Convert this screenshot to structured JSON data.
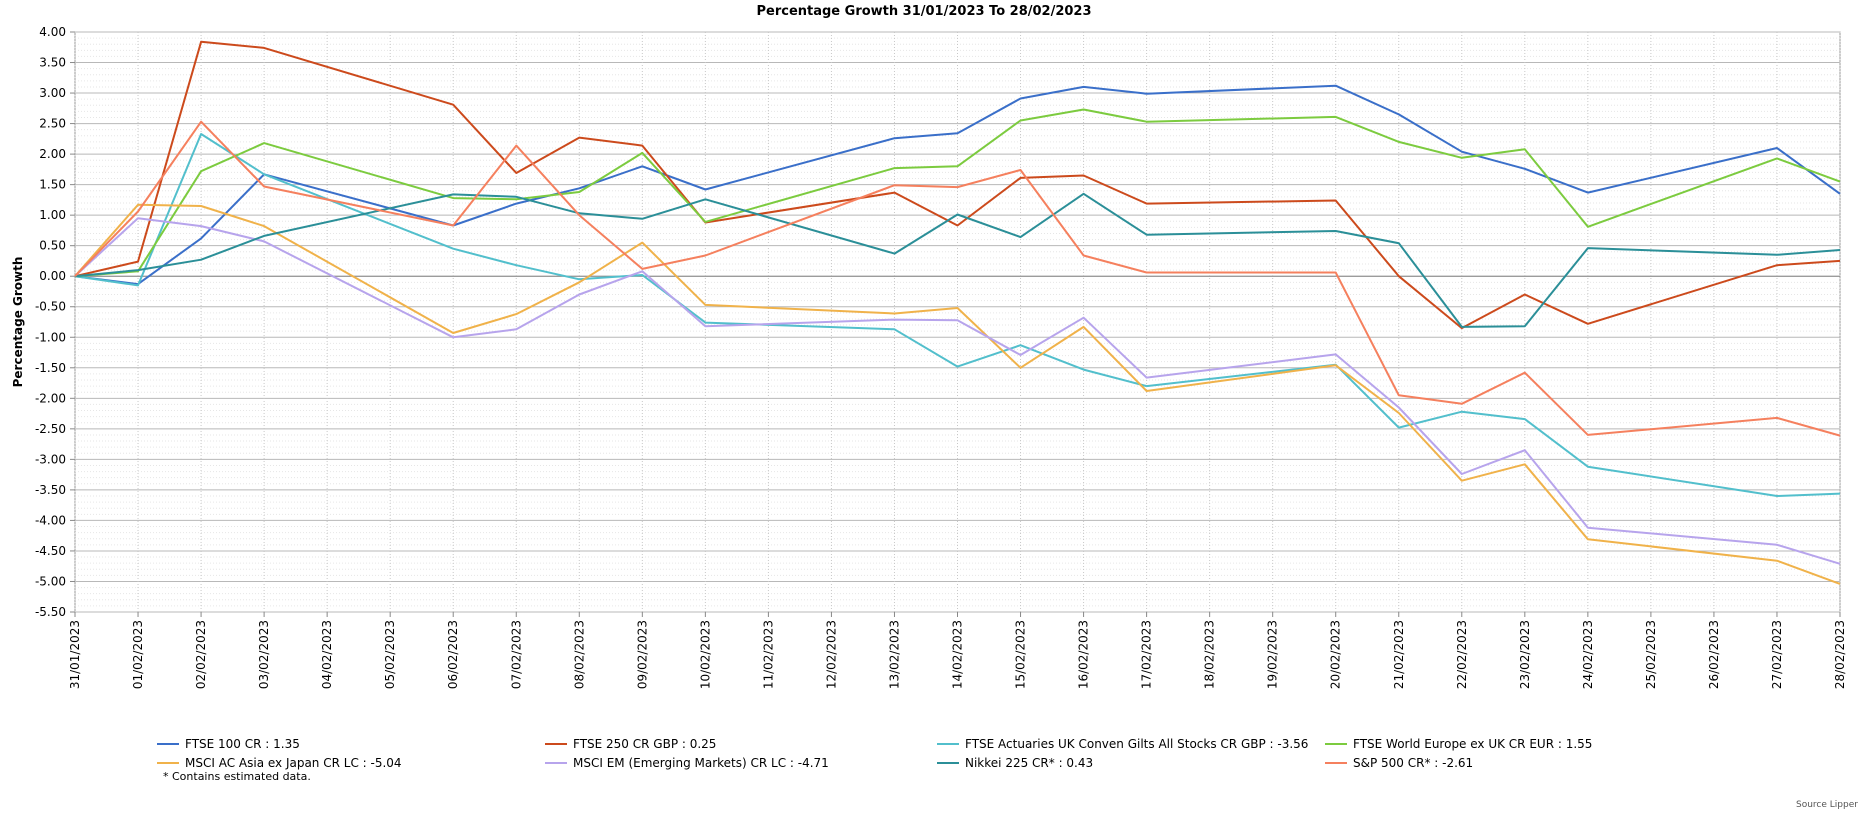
{
  "chart_data": {
    "type": "line",
    "title": "Percentage Growth 31/01/2023 To 28/02/2023",
    "xlabel": "",
    "ylabel": "Percentage Growth",
    "ylim": [
      -5.5,
      4.0
    ],
    "ytick_labels": [
      "4.00",
      "3.50",
      "3.00",
      "2.50",
      "2.00",
      "1.50",
      "1.00",
      "0.50",
      "0.00",
      "-0.50",
      "-1.00",
      "-1.50",
      "-2.00",
      "-2.50",
      "-3.00",
      "-3.50",
      "-4.00",
      "-4.50",
      "-5.00",
      "-5.50"
    ],
    "categories": [
      "31/01/2023",
      "01/02/2023",
      "02/02/2023",
      "03/02/2023",
      "04/02/2023",
      "05/02/2023",
      "06/02/2023",
      "07/02/2023",
      "08/02/2023",
      "09/02/2023",
      "10/02/2023",
      "11/02/2023",
      "12/02/2023",
      "13/02/2023",
      "14/02/2023",
      "15/02/2023",
      "16/02/2023",
      "17/02/2023",
      "18/02/2023",
      "19/02/2023",
      "20/02/2023",
      "21/02/2023",
      "22/02/2023",
      "23/02/2023",
      "24/02/2023",
      "25/02/2023",
      "26/02/2023",
      "27/02/2023",
      "28/02/2023"
    ],
    "grid": true,
    "legend_position": "bottom",
    "series": [
      {
        "name": "FTSE 100 CR",
        "final": "1.35",
        "color": "#3a6fc9",
        "values": [
          0,
          -0.13,
          0.62,
          1.67,
          null,
          null,
          0.83,
          1.19,
          1.44,
          1.8,
          1.42,
          null,
          null,
          2.26,
          2.34,
          2.91,
          3.1,
          2.99,
          null,
          null,
          3.12,
          2.65,
          2.04,
          1.76,
          1.37,
          null,
          null,
          2.1,
          1.35
        ]
      },
      {
        "name": "FTSE 250 CR GBP",
        "final": "0.25",
        "color": "#cc4a1c",
        "values": [
          0,
          0.24,
          3.84,
          3.74,
          null,
          null,
          2.81,
          1.69,
          2.27,
          2.14,
          0.88,
          null,
          null,
          1.37,
          0.83,
          1.61,
          1.65,
          1.19,
          null,
          null,
          1.24,
          0.0,
          -0.85,
          -0.3,
          -0.78,
          null,
          null,
          0.18,
          0.25
        ]
      },
      {
        "name": "FTSE Actuaries UK Conven Gilts All Stocks CR GBP",
        "final": "-3.56",
        "color": "#52bfcc",
        "values": [
          0,
          -0.15,
          2.33,
          1.67,
          null,
          null,
          0.45,
          0.18,
          -0.05,
          0.02,
          -0.76,
          null,
          null,
          -0.87,
          -1.48,
          -1.13,
          -1.53,
          -1.8,
          null,
          null,
          -1.45,
          -2.48,
          -2.22,
          -2.34,
          -3.12,
          null,
          null,
          -3.6,
          -3.56
        ]
      },
      {
        "name": "FTSE World Europe ex UK CR EUR",
        "final": "1.55",
        "color": "#7ccb3f",
        "values": [
          0,
          0.08,
          1.72,
          2.18,
          null,
          null,
          1.28,
          1.26,
          1.38,
          2.02,
          0.89,
          null,
          null,
          1.77,
          1.8,
          2.55,
          2.73,
          2.53,
          null,
          null,
          2.61,
          2.2,
          1.94,
          2.08,
          0.81,
          null,
          null,
          1.93,
          1.55
        ]
      },
      {
        "name": "MSCI AC Asia ex Japan CR LC",
        "final": "-5.04",
        "color": "#f0b24a",
        "values": [
          0,
          1.17,
          1.15,
          0.82,
          null,
          null,
          -0.93,
          -0.62,
          -0.1,
          0.55,
          -0.47,
          null,
          null,
          -0.61,
          -0.52,
          -1.5,
          -0.83,
          -1.88,
          null,
          null,
          -1.46,
          -2.24,
          -3.35,
          -3.08,
          -4.31,
          null,
          null,
          -4.66,
          -5.04
        ]
      },
      {
        "name": "MSCI EM (Emerging Markets) CR LC",
        "final": "-4.71",
        "color": "#b7a4ec",
        "values": [
          0,
          0.95,
          0.82,
          0.57,
          null,
          null,
          -1.0,
          -0.87,
          -0.3,
          0.08,
          -0.82,
          null,
          null,
          -0.71,
          -0.72,
          -1.29,
          -0.68,
          -1.66,
          null,
          null,
          -1.28,
          -2.15,
          -3.24,
          -2.85,
          -4.12,
          null,
          null,
          -4.4,
          -4.71
        ]
      },
      {
        "name": "Nikkei 225 CR*",
        "final": "0.43",
        "color": "#2b8f98",
        "values": [
          0,
          0.1,
          0.27,
          0.66,
          null,
          null,
          1.34,
          1.3,
          1.03,
          0.94,
          1.26,
          null,
          null,
          0.37,
          1.01,
          0.64,
          1.35,
          0.68,
          null,
          null,
          0.74,
          0.54,
          -0.83,
          -0.82,
          0.46,
          null,
          null,
          0.35,
          0.43
        ]
      },
      {
        "name": "S&P 500 CR*",
        "final": "-2.61",
        "color": "#f5805e",
        "values": [
          0,
          1.06,
          2.53,
          1.47,
          null,
          null,
          0.83,
          2.14,
          1.0,
          0.12,
          0.34,
          null,
          null,
          1.49,
          1.46,
          1.74,
          0.34,
          0.06,
          null,
          null,
          0.06,
          -1.95,
          -2.09,
          -1.58,
          -2.6,
          null,
          null,
          -2.32,
          -2.61
        ]
      }
    ],
    "footnote": "*  Contains estimated data.",
    "source": "Source Lipper"
  }
}
